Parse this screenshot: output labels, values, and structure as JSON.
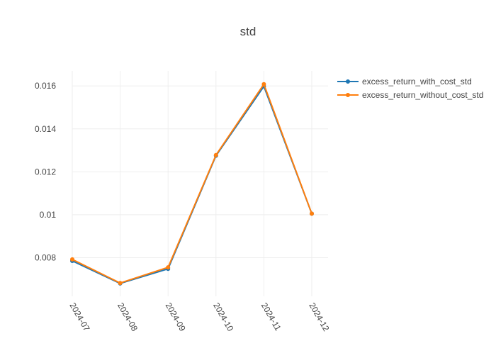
{
  "chart_data": {
    "type": "line",
    "title": "std",
    "xlabel": "",
    "ylabel": "",
    "categories": [
      "2024-07",
      "2024-08",
      "2024-09",
      "2024-10",
      "2024-11",
      "2024-12"
    ],
    "yticks": [
      0.008,
      0.01,
      0.012,
      0.014,
      0.016
    ],
    "ytick_labels": [
      "0.008",
      "0.01",
      "0.012",
      "0.014",
      "0.016"
    ],
    "ylim": [
      0.0062,
      0.0167
    ],
    "grid": true,
    "legend_position": "top-right",
    "series": [
      {
        "name": "excess_return_with_cost_std",
        "color": "#1f77b4",
        "values": [
          0.00785,
          0.0068,
          0.00748,
          0.01275,
          0.01598,
          0.01005
        ]
      },
      {
        "name": "excess_return_without_cost_std",
        "color": "#ff7f0e",
        "values": [
          0.00792,
          0.00682,
          0.00755,
          0.01278,
          0.01608,
          0.01005
        ]
      }
    ]
  }
}
